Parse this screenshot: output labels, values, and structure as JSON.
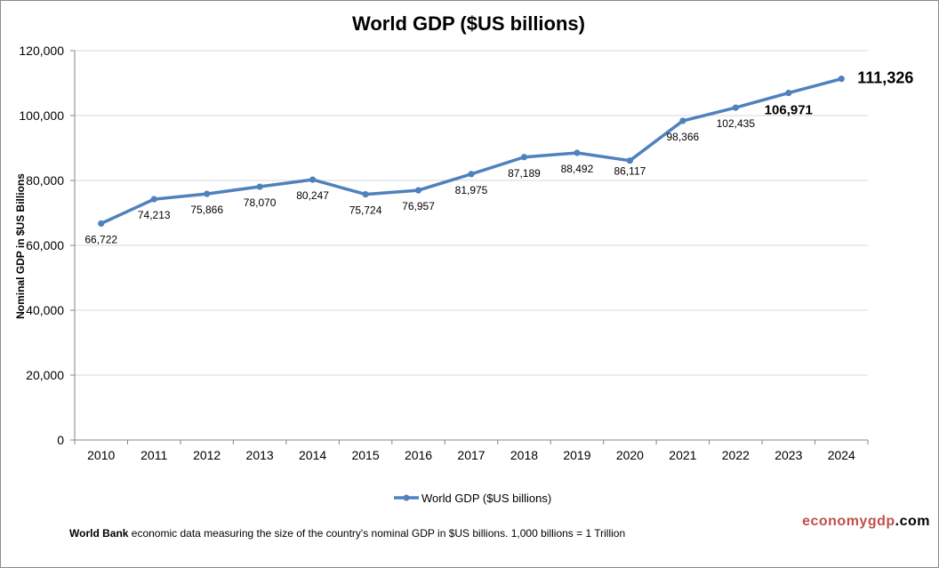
{
  "chart_data": {
    "type": "line",
    "title": "World GDP ($US billions)",
    "ylabel": "Nominal GDP in $US  Billions",
    "xlabel": "",
    "ylim": [
      0,
      120000
    ],
    "yticks": [
      0,
      20000,
      40000,
      60000,
      80000,
      100000,
      120000
    ],
    "ytick_labels": [
      "0",
      "20,000",
      "40,000",
      "60,000",
      "80,000",
      "100,000",
      "120,000"
    ],
    "grid": true,
    "legend_placement": "bottom",
    "categories": [
      "2010",
      "2011",
      "2012",
      "2013",
      "2014",
      "2015",
      "2016",
      "2017",
      "2018",
      "2019",
      "2020",
      "2021",
      "2022",
      "2023",
      "2024"
    ],
    "series": [
      {
        "name": "World GDP ($US billions)",
        "color": "#4f81bd",
        "values": [
          66722,
          74213,
          75866,
          78070,
          80247,
          75724,
          76957,
          81975,
          87189,
          88492,
          86117,
          98366,
          102435,
          106971,
          111326
        ],
        "labels": [
          "66,722",
          "74,213",
          "75,866",
          "78,070",
          "80,247",
          "75,724",
          "76,957",
          "81,975",
          "87,189",
          "88,492",
          "86,117",
          "98,366",
          "102,435",
          "106,971",
          "111,326"
        ]
      }
    ]
  },
  "footer": {
    "source_bold": "World Bank",
    "source_text": " economic data  measuring the size of the country's nominal GDP in $US billions. 1,000 billions = 1 Trillion"
  },
  "brand": {
    "part1": "economy",
    "part2": "gdp",
    "part3": ".com",
    "color1": "#c0504d",
    "color2": "#000000"
  }
}
